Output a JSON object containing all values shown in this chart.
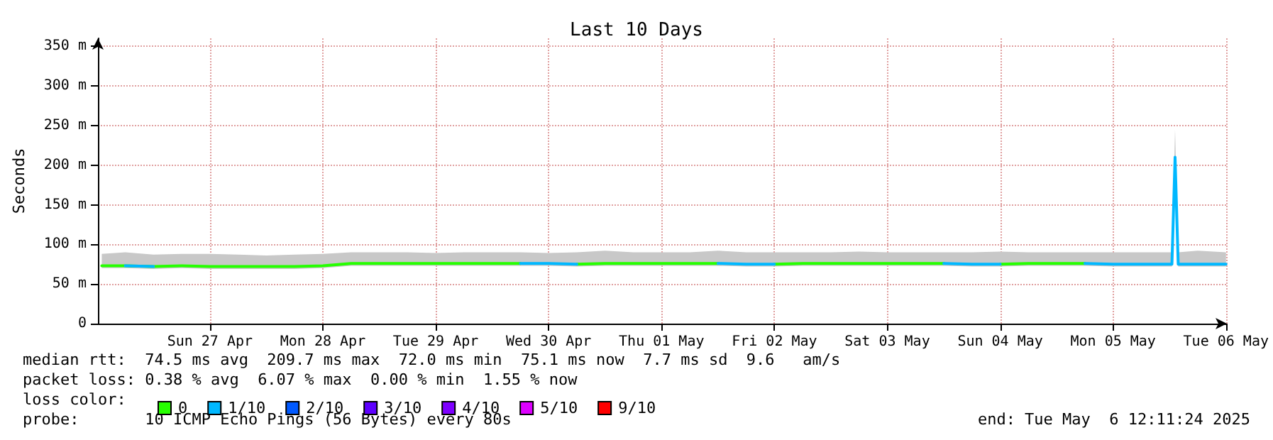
{
  "chart_data": {
    "type": "line",
    "title": "Last 10 Days",
    "ylabel": "Seconds",
    "annotations": [
      "median rtt:  74.5 ms avg  209.7 ms max  72.0 ms min  75.1 ms now  7.7 ms sd  9.6   am/s",
      "packet loss: 0.38 % avg  6.07 % max  0.00 % min  1.55 % now",
      "loss color:",
      "probe:       10 ICMP Echo Pings (56 Bytes) every 80s",
      "end: Tue May  6 12:11:24 2025"
    ],
    "x": [
      "2025-04-26T13:00",
      "2025-04-26T18:00",
      "2025-04-27T00:00",
      "2025-04-27T06:00",
      "2025-04-27T12:00",
      "2025-04-27T18:00",
      "2025-04-28T00:00",
      "2025-04-28T06:00",
      "2025-04-28T12:00",
      "2025-04-28T18:00",
      "2025-04-29T00:00",
      "2025-04-29T06:00",
      "2025-04-29T12:00",
      "2025-04-29T18:00",
      "2025-04-30T00:00",
      "2025-04-30T06:00",
      "2025-04-30T12:00",
      "2025-04-30T18:00",
      "2025-05-01T00:00",
      "2025-05-01T06:00",
      "2025-05-01T12:00",
      "2025-05-01T18:00",
      "2025-05-02T00:00",
      "2025-05-02T06:00",
      "2025-05-02T12:00",
      "2025-05-02T18:00",
      "2025-05-03T00:00",
      "2025-05-03T06:00",
      "2025-05-03T12:00",
      "2025-05-03T18:00",
      "2025-05-04T00:00",
      "2025-05-04T06:00",
      "2025-05-04T12:00",
      "2025-05-04T18:00",
      "2025-05-05T00:00",
      "2025-05-05T06:00",
      "2025-05-05T12:00",
      "2025-05-05T18:00",
      "2025-05-06T00:30",
      "2025-05-06T01:10",
      "2025-05-06T01:50",
      "2025-05-06T06:00",
      "2025-05-06T12:00"
    ],
    "series": [
      {
        "name": "0",
        "color": "#26ff00",
        "values": [
          73,
          73,
          72,
          73,
          72,
          72,
          72,
          72,
          73,
          76,
          76,
          76,
          76,
          76,
          76,
          76,
          null,
          75,
          76,
          76,
          76,
          76,
          76,
          null,
          75,
          76,
          76,
          76,
          76,
          76,
          76,
          null,
          75,
          76,
          76,
          76,
          null,
          null,
          null,
          null,
          null,
          null,
          null
        ],
        "lower": [
          70,
          70,
          69,
          70,
          69,
          69,
          69,
          69,
          70,
          73,
          73,
          73,
          73,
          73,
          73,
          73,
          73,
          72,
          73,
          73,
          73,
          73,
          73,
          72,
          72,
          73,
          73,
          73,
          73,
          73,
          73,
          72,
          72,
          73,
          73,
          73,
          72,
          72,
          72,
          200,
          72,
          72,
          72
        ],
        "upper": [
          88,
          90,
          87,
          88,
          88,
          87,
          86,
          87,
          88,
          90,
          90,
          90,
          89,
          90,
          90,
          90,
          89,
          90,
          92,
          90,
          90,
          90,
          92,
          90,
          90,
          90,
          90,
          91,
          90,
          90,
          90,
          90,
          91,
          90,
          90,
          90,
          90,
          90,
          90,
          245,
          90,
          92,
          90
        ]
      },
      {
        "name": "1/10",
        "color": "#00b8ff",
        "values": [
          null,
          73,
          72,
          null,
          null,
          null,
          null,
          null,
          null,
          null,
          null,
          null,
          null,
          null,
          null,
          76,
          76,
          75,
          null,
          null,
          null,
          null,
          76,
          75,
          75,
          null,
          null,
          null,
          null,
          null,
          76,
          75,
          75,
          null,
          null,
          76,
          75,
          75,
          75,
          210,
          75,
          75,
          75
        ]
      },
      {
        "name": "2/10",
        "color": "#0059ff",
        "values": [
          null,
          null,
          null,
          null,
          null,
          null,
          null,
          null,
          null,
          null,
          null,
          null,
          null,
          null,
          null,
          null,
          null,
          null,
          null,
          null,
          null,
          null,
          null,
          null,
          null,
          null,
          null,
          null,
          null,
          null,
          null,
          null,
          null,
          null,
          null,
          null,
          null,
          null,
          null,
          null,
          null,
          null,
          null
        ]
      },
      {
        "name": "3/10",
        "color": "#5e00ff",
        "values": [
          null,
          null,
          null,
          null,
          null,
          null,
          null,
          null,
          null,
          null,
          null,
          null,
          null,
          null,
          null,
          null,
          null,
          null,
          null,
          null,
          null,
          null,
          null,
          null,
          null,
          null,
          null,
          null,
          null,
          null,
          null,
          null,
          null,
          null,
          null,
          null,
          null,
          null,
          null,
          null,
          null,
          null,
          null
        ]
      },
      {
        "name": "4/10",
        "color": "#7e00ff",
        "values": [
          null,
          null,
          null,
          null,
          null,
          null,
          null,
          null,
          null,
          null,
          null,
          null,
          null,
          null,
          null,
          null,
          null,
          null,
          null,
          null,
          null,
          null,
          null,
          null,
          null,
          null,
          null,
          null,
          null,
          null,
          null,
          null,
          null,
          null,
          null,
          null,
          null,
          null,
          null,
          null,
          null,
          null,
          null
        ]
      },
      {
        "name": "5/10",
        "color": "#dd00ff",
        "values": [
          null,
          null,
          null,
          null,
          null,
          null,
          null,
          null,
          null,
          null,
          null,
          null,
          null,
          null,
          null,
          null,
          null,
          null,
          null,
          null,
          null,
          null,
          null,
          null,
          null,
          null,
          null,
          null,
          null,
          null,
          null,
          null,
          null,
          null,
          null,
          null,
          null,
          null,
          null,
          null,
          null,
          null,
          null
        ]
      },
      {
        "name": "9/10",
        "color": "#ff0000",
        "values": [
          null,
          null,
          null,
          null,
          null,
          null,
          null,
          null,
          null,
          null,
          null,
          null,
          null,
          null,
          null,
          null,
          null,
          null,
          null,
          null,
          null,
          null,
          null,
          null,
          null,
          null,
          null,
          null,
          null,
          null,
          null,
          null,
          null,
          null,
          null,
          null,
          null,
          null,
          null,
          null,
          null,
          null,
          null
        ]
      }
    ],
    "xlim": [
      "2025-04-26T12:11",
      "2025-05-06T12:11"
    ],
    "xticks": [
      {
        "value": "2025-04-27T12:00",
        "label": "Sun 27 Apr"
      },
      {
        "value": "2025-04-28T12:00",
        "label": "Mon 28 Apr"
      },
      {
        "value": "2025-04-29T12:00",
        "label": "Tue 29 Apr"
      },
      {
        "value": "2025-04-30T12:00",
        "label": "Wed 30 Apr"
      },
      {
        "value": "2025-05-01T12:00",
        "label": "Thu 01 May"
      },
      {
        "value": "2025-05-02T12:00",
        "label": "Fri 02 May"
      },
      {
        "value": "2025-05-03T12:00",
        "label": "Sat 03 May"
      },
      {
        "value": "2025-05-04T12:00",
        "label": "Sun 04 May"
      },
      {
        "value": "2025-05-05T12:00",
        "label": "Mon 05 May"
      },
      {
        "value": "2025-05-06T12:00",
        "label": "Tue 06 May"
      }
    ],
    "ylim": [
      0,
      360
    ],
    "yticks": [
      0,
      {
        "value": 50,
        "label": "50 m"
      },
      {
        "value": 100,
        "label": "100 m"
      },
      {
        "value": 150,
        "label": "150 m"
      },
      {
        "value": 200,
        "label": "200 m"
      },
      {
        "value": 250,
        "label": "250 m"
      },
      {
        "value": 300,
        "label": "300 m"
      },
      {
        "value": 350,
        "label": "350 m"
      }
    ],
    "grid": true,
    "legend": "bottom left",
    "marker": "none",
    "line_style": "solid"
  }
}
